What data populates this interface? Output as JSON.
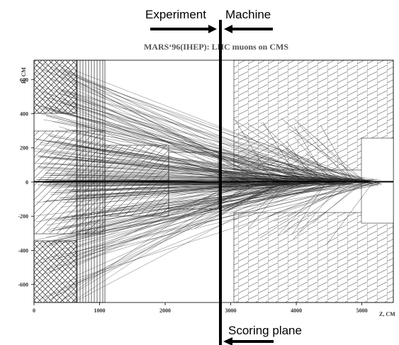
{
  "title": "MARS‘96(IHEP): LHC muons on CMS",
  "annotations": {
    "experiment": "Experiment",
    "machine": "Machine",
    "scoring_plane": "Scoring plane"
  },
  "axes": {
    "x_label": "Z, CM",
    "y_label": "R, CM",
    "xlim": [
      0,
      5480
    ],
    "xticks": [
      0,
      1000,
      2000,
      3000,
      4000,
      5000
    ],
    "ylim": [
      -705,
      713
    ],
    "yticks": [
      -600,
      -400,
      -200,
      0,
      200,
      400,
      600
    ]
  }
}
